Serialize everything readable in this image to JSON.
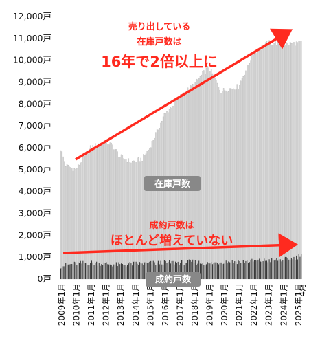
{
  "chart_data": {
    "type": "bar",
    "y_tick_labels": [
      "0戸",
      "1,000戸",
      "2,000戸",
      "3,000戸",
      "4,000戸",
      "5,000戸",
      "6,000戸",
      "7,000戸",
      "8,000戸",
      "9,000戸",
      "10,000戸",
      "11,000戸",
      "12,000戸"
    ],
    "ylim": [
      0,
      12000
    ],
    "grid": false,
    "x_tick_labels": [
      "2009年1月",
      "2010年1月",
      "2011年1月",
      "2012年1月",
      "2013年1月",
      "2014年1月",
      "2015年1月",
      "2016年1月",
      "2017年1月",
      "2018年1月",
      "2019年1月",
      "2020年1月",
      "2021年1月",
      "2022年1月",
      "2023年1月",
      "2024年1月",
      "2025年1月",
      "4月"
    ],
    "series": [
      {
        "name": "在庫戸数",
        "color": "#d9d9d9",
        "anchors": [
          [
            0,
            5950
          ],
          [
            4,
            5200
          ],
          [
            12,
            5000
          ],
          [
            24,
            6000
          ],
          [
            36,
            6300
          ],
          [
            42,
            6100
          ],
          [
            48,
            5600
          ],
          [
            57,
            5350
          ],
          [
            66,
            5500
          ],
          [
            72,
            6000
          ],
          [
            84,
            7500
          ],
          [
            96,
            8300
          ],
          [
            108,
            8900
          ],
          [
            120,
            9700
          ],
          [
            130,
            8600
          ],
          [
            144,
            8800
          ],
          [
            156,
            10300
          ],
          [
            168,
            10800
          ],
          [
            184,
            10750
          ],
          [
            195,
            10800
          ]
        ],
        "values": []
      },
      {
        "name": "成約戸数",
        "color": "#3a3a3a",
        "anchors": [
          [
            0,
            600
          ],
          [
            12,
            700
          ],
          [
            24,
            750
          ],
          [
            36,
            700
          ],
          [
            48,
            650
          ],
          [
            60,
            700
          ],
          [
            72,
            720
          ],
          [
            84,
            750
          ],
          [
            96,
            760
          ],
          [
            108,
            780
          ],
          [
            120,
            700
          ],
          [
            132,
            800
          ],
          [
            144,
            800
          ],
          [
            156,
            820
          ],
          [
            168,
            850
          ],
          [
            184,
            900
          ],
          [
            192,
            1000
          ],
          [
            195,
            1200
          ]
        ],
        "values": []
      }
    ],
    "series_labels": [
      "在庫戸数",
      "成約戸数"
    ],
    "annotations": {
      "top": [
        "売り出している",
        "在庫戸数は",
        "16年で2倍以上に"
      ],
      "bottom": [
        "成約戸数は",
        "ほとんど増えていない"
      ]
    }
  },
  "colors": {
    "stock_bar": "#d9d9d9",
    "contract_bar": "#3a3a3a",
    "annotation_red": "#ff2a1f",
    "label_bg": "#888888"
  }
}
